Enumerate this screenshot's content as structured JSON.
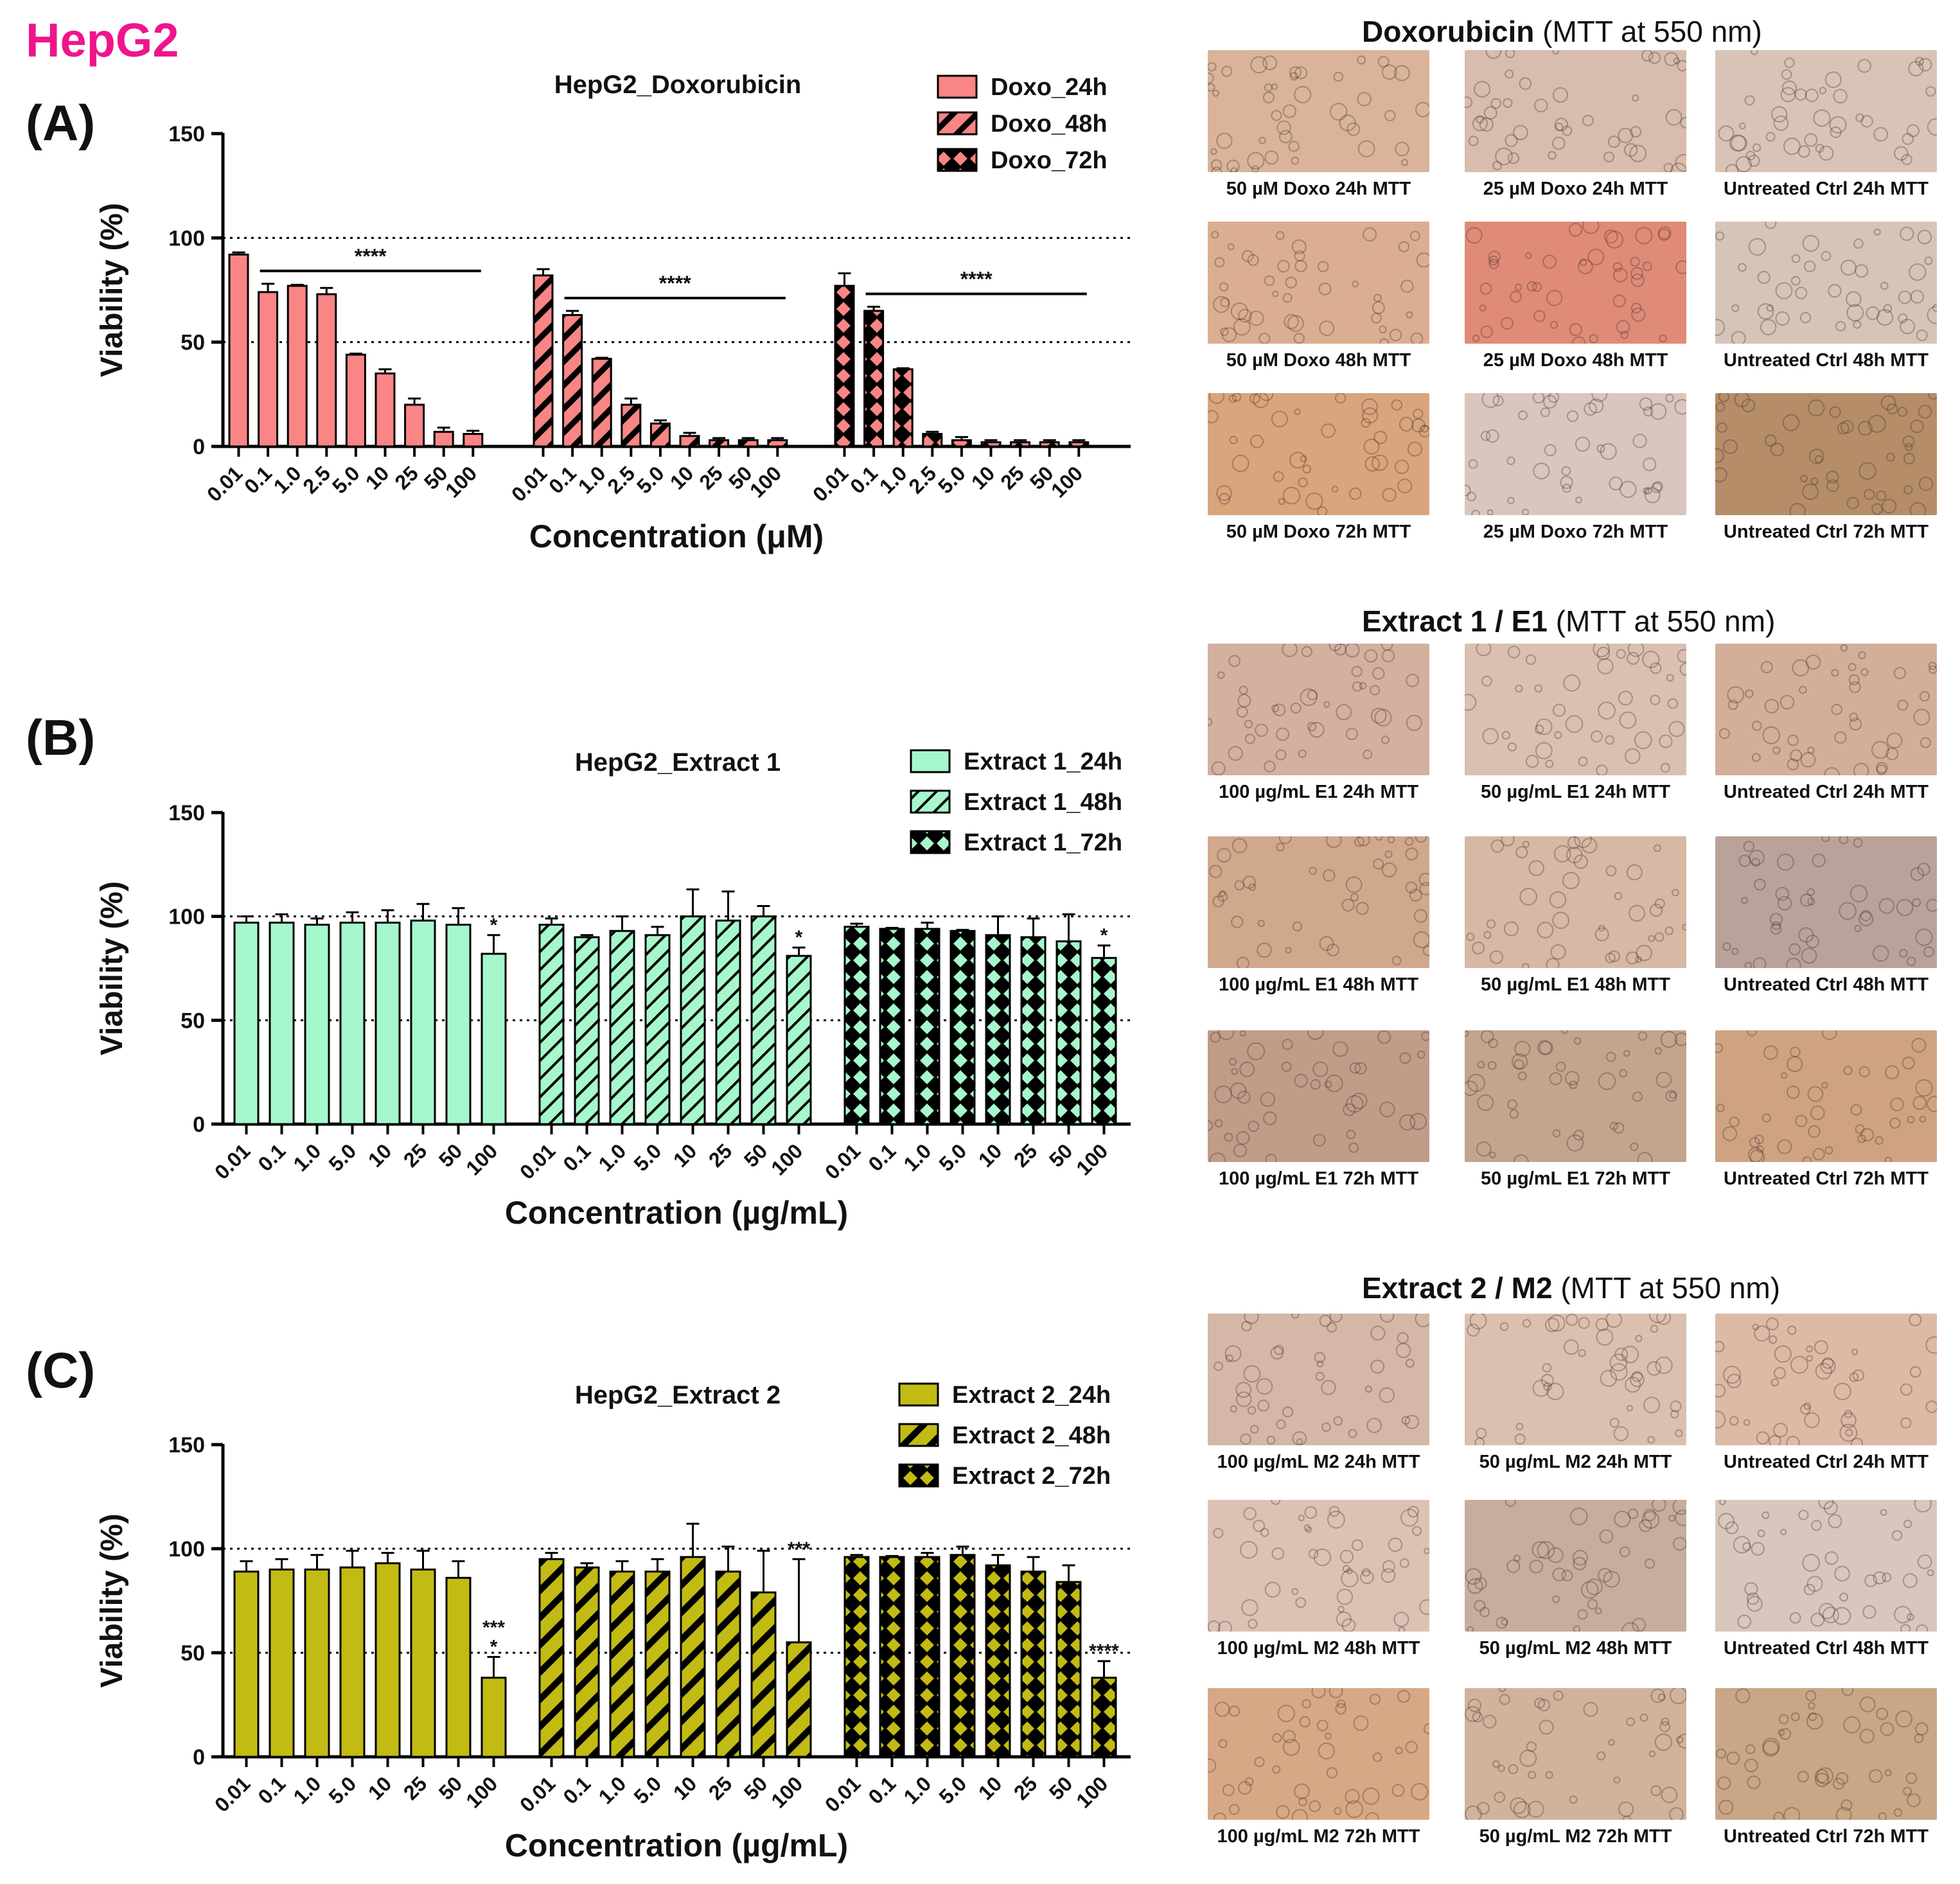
{
  "figure_label": "HepG2",
  "colors": {
    "figure_label": "#f0148c",
    "doxo": "#f98585",
    "extract1": "#a6f7cc",
    "extract2": "#c2bb14",
    "axis": "#000000"
  },
  "chart_data": [
    {
      "id": "A",
      "panel_label": "(A)",
      "type": "bar",
      "title": "HepG2_Doxorubicin",
      "xlabel": "Concentration (μM)",
      "ylabel": "Viability (%)",
      "ylim": [
        0,
        150
      ],
      "yticks": [
        0,
        50,
        100,
        150
      ],
      "reference_lines": [
        50,
        100
      ],
      "legend_position": "top-right",
      "series": [
        {
          "name": "Doxo_24h",
          "pattern": "solid",
          "categories": [
            "0.01",
            "0.1",
            "1.0",
            "2.5",
            "5.0",
            "10",
            "25",
            "50",
            "100"
          ],
          "values": [
            92,
            74,
            77,
            73,
            44,
            35,
            20,
            7,
            6
          ],
          "errors": [
            1,
            4,
            0.5,
            3,
            0.5,
            2,
            3,
            2,
            1.5
          ]
        },
        {
          "name": "Doxo_48h",
          "pattern": "hatch",
          "categories": [
            "0.01",
            "0.1",
            "1.0",
            "2.5",
            "5.0",
            "10",
            "25",
            "50",
            "100"
          ],
          "values": [
            82,
            63,
            42,
            20,
            11,
            5,
            3,
            3,
            3
          ],
          "errors": [
            3,
            2,
            0.5,
            3,
            1.5,
            1.5,
            1,
            1,
            1
          ]
        },
        {
          "name": "Doxo_72h",
          "pattern": "cross",
          "categories": [
            "0.01",
            "0.1",
            "1.0",
            "2.5",
            "5.0",
            "10",
            "25",
            "50",
            "100"
          ],
          "values": [
            77,
            65,
            37,
            6,
            3,
            2,
            2,
            2,
            2
          ],
          "errors": [
            6,
            2,
            0.5,
            1,
            1.5,
            1,
            1,
            1,
            1
          ]
        }
      ],
      "significance": [
        {
          "series": 0,
          "from": 1,
          "to": 8,
          "label": "****"
        },
        {
          "series": 1,
          "from": 1,
          "to": 8,
          "label": "****"
        },
        {
          "series": 2,
          "from": 1,
          "to": 8,
          "label": "****"
        }
      ],
      "point_annotations": []
    },
    {
      "id": "B",
      "panel_label": "(B)",
      "type": "bar",
      "title": "HepG2_Extract 1",
      "xlabel": "Concentration (µg/mL)",
      "ylabel": "Viability (%)",
      "ylim": [
        0,
        150
      ],
      "yticks": [
        0,
        50,
        100,
        150
      ],
      "reference_lines": [
        50,
        100
      ],
      "legend_position": "top-right",
      "series": [
        {
          "name": "Extract 1_24h",
          "pattern": "solid",
          "categories": [
            "0.01",
            "0.1",
            "1.0",
            "5.0",
            "10",
            "25",
            "50",
            "100"
          ],
          "values": [
            97,
            97,
            96,
            97,
            97,
            98,
            96,
            82
          ],
          "errors": [
            3,
            4,
            3,
            5,
            6,
            8,
            8,
            9
          ]
        },
        {
          "name": "Extract 1_48h",
          "pattern": "hatch",
          "categories": [
            "0.01",
            "0.1",
            "1.0",
            "5.0",
            "10",
            "25",
            "50",
            "100"
          ],
          "values": [
            96,
            90,
            93,
            91,
            100,
            98,
            100,
            81
          ],
          "errors": [
            3,
            1,
            7,
            4,
            13,
            14,
            5,
            4
          ]
        },
        {
          "name": "Extract 1_72h",
          "pattern": "cross",
          "categories": [
            "0.01",
            "0.1",
            "1.0",
            "5.0",
            "10",
            "25",
            "50",
            "100"
          ],
          "values": [
            95,
            94,
            94,
            93,
            91,
            90,
            88,
            80
          ],
          "errors": [
            1.5,
            0.5,
            3,
            0.5,
            9,
            9,
            13,
            6
          ]
        }
      ],
      "significance": [],
      "point_annotations": [
        {
          "series": 0,
          "index": 7,
          "labels": [
            "*"
          ]
        },
        {
          "series": 1,
          "index": 7,
          "labels": [
            "*"
          ]
        },
        {
          "series": 2,
          "index": 7,
          "labels": [
            "*"
          ]
        }
      ]
    },
    {
      "id": "C",
      "panel_label": "(C)",
      "type": "bar",
      "title": "HepG2_Extract 2",
      "xlabel": "Concentration (µg/mL)",
      "ylabel": "Viability (%)",
      "ylim": [
        0,
        150
      ],
      "yticks": [
        0,
        50,
        100,
        150
      ],
      "reference_lines": [
        50,
        100
      ],
      "legend_position": "top-right",
      "series": [
        {
          "name": "Extract 2_24h",
          "pattern": "solid",
          "categories": [
            "0.01",
            "0.1",
            "1.0",
            "5.0",
            "10",
            "25",
            "50",
            "100"
          ],
          "values": [
            89,
            90,
            90,
            91,
            93,
            90,
            86,
            38
          ],
          "errors": [
            5,
            5,
            7,
            8,
            5,
            9,
            8,
            10
          ]
        },
        {
          "name": "Extract 2_48h",
          "pattern": "hatch",
          "categories": [
            "0.01",
            "0.1",
            "1.0",
            "5.0",
            "10",
            "25",
            "50",
            "100"
          ],
          "values": [
            95,
            91,
            89,
            89,
            96,
            89,
            79,
            55
          ],
          "errors": [
            3,
            2,
            5,
            6,
            16,
            12,
            20,
            40
          ]
        },
        {
          "name": "Extract 2_72h",
          "pattern": "cross",
          "categories": [
            "0.01",
            "0.1",
            "1.0",
            "5.0",
            "10",
            "25",
            "50",
            "100"
          ],
          "values": [
            96,
            96,
            96,
            97,
            92,
            89,
            84,
            38
          ],
          "errors": [
            1,
            0.5,
            2,
            4,
            5,
            7,
            8,
            8
          ]
        }
      ],
      "significance": [],
      "point_annotations": [
        {
          "series": 0,
          "index": 7,
          "labels": [
            "*",
            "***"
          ]
        },
        {
          "series": 1,
          "index": 7,
          "labels": [
            "***"
          ]
        },
        {
          "series": 2,
          "index": 7,
          "labels": [
            "****"
          ]
        }
      ]
    }
  ],
  "micrographs": [
    {
      "title_bold": "Doxorubicin",
      "title_rest": " (MTT at 550 nm)",
      "rows": [
        [
          {
            "caption": "50 µM Doxo 24h MTT",
            "tone": "#d9b499"
          },
          {
            "caption": "25 µM Doxo 24h MTT",
            "tone": "#d8bcad"
          },
          {
            "caption": "Untreated Ctrl 24h MTT",
            "tone": "#d8c4b6"
          }
        ],
        [
          {
            "caption": "50 µM Doxo 48h MTT",
            "tone": "#dbae91"
          },
          {
            "caption": "25 µM Doxo 48h MTT",
            "tone": "#e08a78"
          },
          {
            "caption": "Untreated Ctrl 48h MTT",
            "tone": "#d6c4b8"
          }
        ],
        [
          {
            "caption": "50 µM Doxo 72h MTT",
            "tone": "#d9a57d"
          },
          {
            "caption": "25 µM Doxo 72h MTT",
            "tone": "#d8c7bd"
          },
          {
            "caption": "Untreated Ctrl 72h MTT",
            "tone": "#b58d68"
          }
        ]
      ]
    },
    {
      "title_bold": "Extract 1 / E1",
      "title_rest": " (MTT at 550 nm)",
      "rows": [
        [
          {
            "caption": "100 µg/mL E1 24h MTT",
            "tone": "#d3b09f"
          },
          {
            "caption": "50 µg/mL E1 24h MTT",
            "tone": "#d9c0b2"
          },
          {
            "caption": "Untreated Ctrl 24h MTT",
            "tone": "#d3ae99"
          }
        ],
        [
          {
            "caption": "100 µg/mL E1 48h MTT",
            "tone": "#d0a88c"
          },
          {
            "caption": "50 µg/mL E1 48h MTT",
            "tone": "#d6b8a4"
          },
          {
            "caption": "Untreated Ctrl 48h MTT",
            "tone": "#b9a299"
          }
        ],
        [
          {
            "caption": "100 µg/mL E1 72h MTT",
            "tone": "#c19c89"
          },
          {
            "caption": "50 µg/mL E1 72h MTT",
            "tone": "#c3a48e"
          },
          {
            "caption": "Untreated Ctrl 72h MTT",
            "tone": "#cfa382"
          }
        ]
      ]
    },
    {
      "title_bold": "Extract 2 / M2",
      "title_rest": " (MTT at 550 nm)",
      "rows": [
        [
          {
            "caption": "100 µg/mL M2 24h MTT",
            "tone": "#d4b7a7"
          },
          {
            "caption": "50 µg/mL M2 24h MTT",
            "tone": "#dbc0b0"
          },
          {
            "caption": "Untreated Ctrl 24h MTT",
            "tone": "#ddbaa6"
          }
        ],
        [
          {
            "caption": "100 µg/mL M2 48h MTT",
            "tone": "#dcc2b4"
          },
          {
            "caption": "50 µg/mL M2 48h MTT",
            "tone": "#c7ad9c"
          },
          {
            "caption": "Untreated Ctrl 48h MTT",
            "tone": "#d8c7bc"
          }
        ],
        [
          {
            "caption": "100 µg/mL M2 72h MTT",
            "tone": "#d7a885"
          },
          {
            "caption": "50 µg/mL M2 72h MTT",
            "tone": "#d1b29c"
          },
          {
            "caption": "Untreated Ctrl 72h MTT",
            "tone": "#c8a686"
          }
        ]
      ]
    }
  ]
}
